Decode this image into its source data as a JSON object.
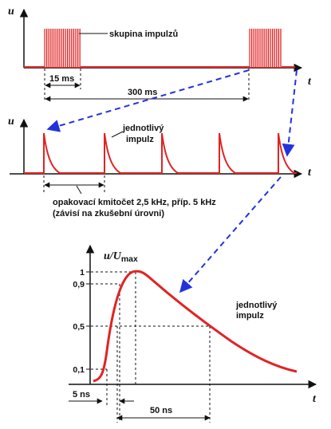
{
  "colors": {
    "signal": "#e02424",
    "arrow": "#2233dd",
    "axis": "#111111",
    "background": "#ffffff"
  },
  "panel_top": {
    "u_axis": "u",
    "t_axis": "t",
    "burst_label": "skupina impulzů",
    "burst_width": "15 ms",
    "period": "300 ms"
  },
  "panel_middle": {
    "u_axis": "u",
    "t_axis": "t",
    "pulse_label_line1": "jednotlivý",
    "pulse_label_line2": "impulz",
    "rate_line1": "opakovací kmitočet 2,5 kHz, příp. 5 kHz",
    "rate_line2": "(závisí na zkušební úrovni)"
  },
  "panel_bottom": {
    "y_axis_main": "u",
    "y_axis_slash": "/",
    "y_axis_U": "U",
    "y_axis_sub": "max",
    "t_axis": "t",
    "y_ticks": [
      "1",
      "0,9",
      "0,5",
      "0,1"
    ],
    "rise_time": "5 ns",
    "half_width": "50 ns",
    "pulse_label_line1": "jednotlivý",
    "pulse_label_line2": "impulz"
  }
}
